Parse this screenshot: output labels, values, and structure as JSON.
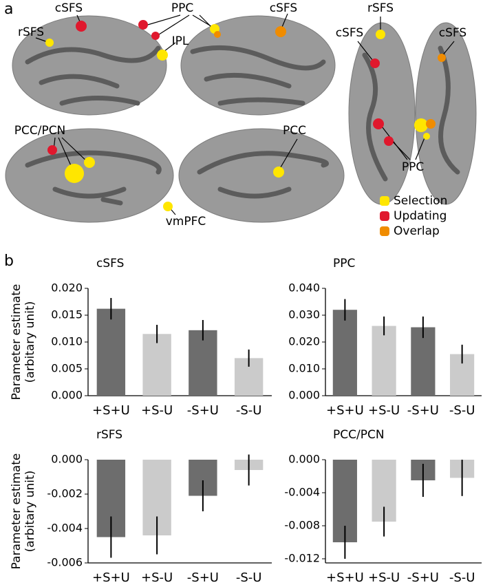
{
  "figure": {
    "panel_a": {
      "label": "a",
      "regions": [
        "cSFS",
        "PPC",
        "IPL",
        "rSFS",
        "cSFS",
        "rSFS",
        "cSFS",
        "cSFS",
        "PCC/PCN",
        "PCC",
        "vmPFC",
        "PPC"
      ],
      "legend": [
        {
          "name": "Selection",
          "color": "#ffe600"
        },
        {
          "name": "Updating",
          "color": "#e0182d"
        },
        {
          "name": "Overlap",
          "color": "#f08c00"
        }
      ]
    },
    "panel_b_label": "b"
  },
  "chart_data": [
    {
      "type": "bar",
      "title": "cSFS",
      "ylabel": [
        "Parameter estimate",
        "(arbitary unit)"
      ],
      "categories": [
        "+S+U",
        "+S-U",
        "-S+U",
        "-S-U"
      ],
      "values": [
        0.0162,
        0.0115,
        0.0122,
        0.007
      ],
      "errors": [
        0.002,
        0.0017,
        0.0019,
        0.0016
      ],
      "colors": [
        "#6d6d6d",
        "#cbcbcb",
        "#6d6d6d",
        "#cbcbcb"
      ],
      "ylim": [
        0,
        0.02
      ],
      "yticks": [
        {
          "value": 0,
          "label": "0.000"
        },
        {
          "value": 0.005,
          "label": "0.005"
        },
        {
          "value": 0.01,
          "label": "0.010"
        },
        {
          "value": 0.015,
          "label": "0.015"
        },
        {
          "value": 0.02,
          "label": "0.020"
        }
      ]
    },
    {
      "type": "bar",
      "title": "PPC",
      "categories": [
        "+S+U",
        "+S-U",
        "-S+U",
        "-S-U"
      ],
      "values": [
        0.032,
        0.026,
        0.0255,
        0.0155
      ],
      "errors": [
        0.004,
        0.0035,
        0.004,
        0.0035
      ],
      "colors": [
        "#6d6d6d",
        "#cbcbcb",
        "#6d6d6d",
        "#cbcbcb"
      ],
      "ylim": [
        0,
        0.04
      ],
      "yticks": [
        {
          "value": 0,
          "label": "0.000"
        },
        {
          "value": 0.01,
          "label": "0.010"
        },
        {
          "value": 0.02,
          "label": "0.020"
        },
        {
          "value": 0.03,
          "label": "0.030"
        },
        {
          "value": 0.04,
          "label": "0.040"
        }
      ]
    },
    {
      "type": "bar",
      "title": "rSFS",
      "ylabel": [
        "Parameter estimate",
        "(arbitary unit)"
      ],
      "categories": [
        "+S+U",
        "+S-U",
        "-S+U",
        "-S-U"
      ],
      "values": [
        -0.0045,
        -0.0044,
        -0.0021,
        -0.0006
      ],
      "errors": [
        0.0012,
        0.0011,
        0.0009,
        0.0009
      ],
      "colors": [
        "#6d6d6d",
        "#cbcbcb",
        "#6d6d6d",
        "#cbcbcb"
      ],
      "ylim": [
        -0.006,
        0
      ],
      "yticks": [
        {
          "value": 0,
          "label": "0.000"
        },
        {
          "value": -0.002,
          "label": "-0.002"
        },
        {
          "value": -0.004,
          "label": "-0.004"
        },
        {
          "value": -0.006,
          "label": "-0.006"
        }
      ]
    },
    {
      "type": "bar",
      "title": "PCC/PCN",
      "categories": [
        "+S+U",
        "+S-U",
        "-S+U",
        "-S-U"
      ],
      "values": [
        -0.01,
        -0.0075,
        -0.0025,
        -0.0022
      ],
      "errors": [
        0.002,
        0.0018,
        0.002,
        0.0022
      ],
      "colors": [
        "#6d6d6d",
        "#cbcbcb",
        "#6d6d6d",
        "#cbcbcb"
      ],
      "ylim": [
        -0.0125,
        0
      ],
      "yticks": [
        {
          "value": 0,
          "label": "0.000"
        },
        {
          "value": -0.004,
          "label": "-0.004"
        },
        {
          "value": -0.008,
          "label": "-0.008"
        },
        {
          "value": -0.012,
          "label": "-0.012"
        }
      ]
    }
  ]
}
